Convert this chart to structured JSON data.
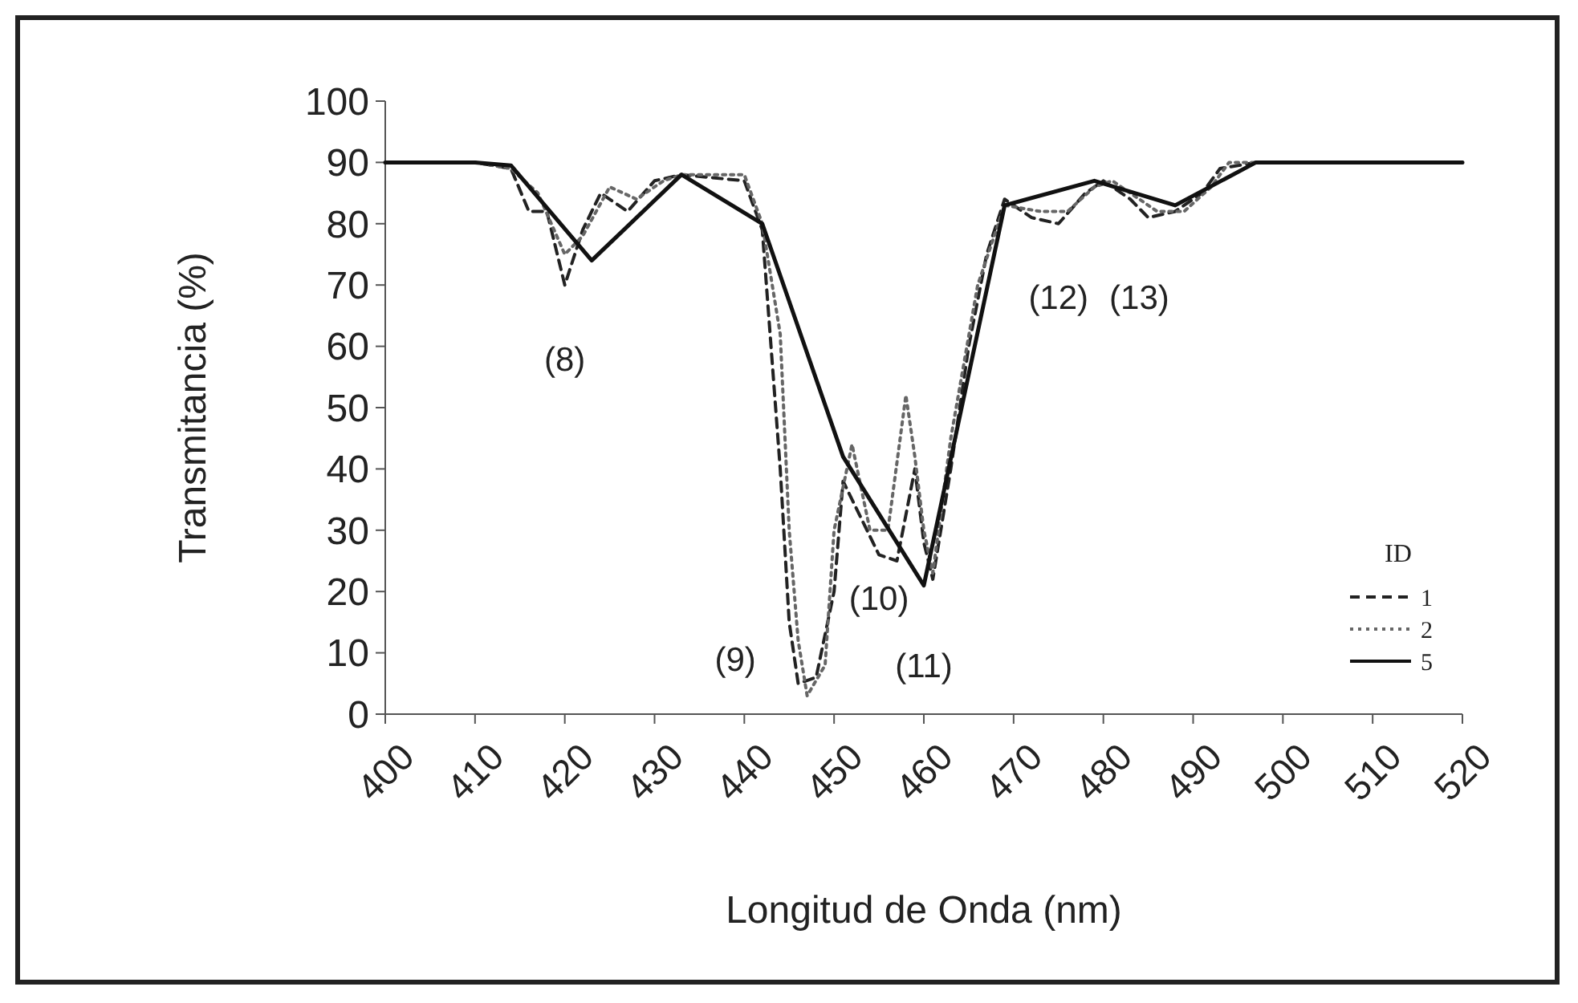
{
  "chart_data": {
    "type": "line",
    "xlabel": "Longitud de Onda (nm)",
    "ylabel": "Transmitancia (%)",
    "legend_title": "ID",
    "legend": "bottom right",
    "grid": false,
    "xlim": [
      400,
      520
    ],
    "xticks": [
      400,
      410,
      420,
      430,
      440,
      450,
      460,
      470,
      480,
      490,
      500,
      510,
      520
    ],
    "ylim": [
      0,
      100
    ],
    "yticks": [
      0,
      10,
      20,
      30,
      40,
      50,
      60,
      70,
      80,
      90,
      100
    ],
    "series": [
      {
        "name": "1",
        "color": "#222222",
        "line_style": "dashed",
        "x": [
          400,
          410,
          414,
          416,
          418,
          420,
          422,
          424,
          427,
          430,
          433,
          440,
          442,
          444,
          445,
          446,
          448,
          450,
          451,
          453,
          455,
          457,
          459,
          460,
          461,
          463,
          465,
          467,
          469,
          472,
          475,
          478,
          480,
          483,
          485,
          488,
          491,
          493,
          497,
          520
        ],
        "values": [
          90,
          90,
          89,
          82,
          82,
          70,
          79,
          85,
          82,
          87,
          88,
          87,
          79,
          40,
          15,
          5,
          6,
          20,
          38,
          32,
          26,
          25,
          40,
          28,
          22,
          40,
          60,
          75,
          84,
          81,
          80,
          85,
          87,
          84,
          81,
          82,
          85,
          89,
          90,
          90
        ]
      },
      {
        "name": "2",
        "color": "#666666",
        "line_style": "dotted",
        "x": [
          400,
          410,
          414,
          417,
          420,
          422,
          425,
          428,
          431,
          433,
          437,
          440,
          442,
          444,
          445,
          446,
          447,
          449,
          450,
          452,
          454,
          456,
          458,
          459,
          460,
          461,
          463,
          466,
          469,
          473,
          476,
          479,
          481,
          484,
          486,
          489,
          492,
          494,
          497,
          520
        ],
        "values": [
          90,
          90,
          89,
          85,
          75,
          78,
          86,
          84,
          87,
          88,
          88,
          88,
          80,
          62,
          30,
          12,
          3,
          8,
          30,
          44,
          30,
          30,
          52,
          42,
          30,
          23,
          45,
          70,
          83,
          82,
          82,
          86,
          87,
          84,
          82,
          82,
          86,
          90,
          90,
          90
        ]
      },
      {
        "name": "5",
        "color": "#111111",
        "line_style": "solid",
        "x": [
          400,
          410,
          414,
          423,
          433,
          442,
          451,
          460,
          469,
          479,
          488,
          497,
          520
        ],
        "values": [
          90,
          90,
          89.5,
          74,
          88,
          80,
          42,
          21,
          83,
          87,
          83,
          90,
          90
        ]
      }
    ],
    "annotations": [
      "(8)",
      "(9)",
      "(10)",
      "(11)",
      "(12)",
      "(13)"
    ]
  }
}
